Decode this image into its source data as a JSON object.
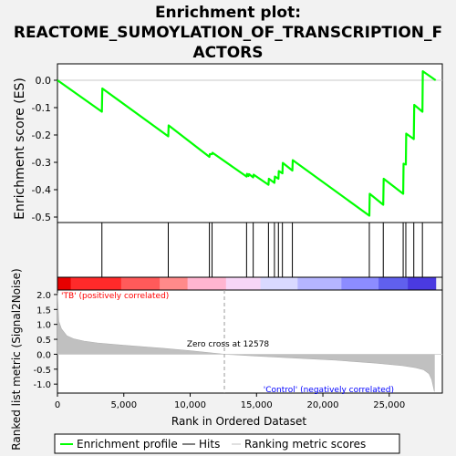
{
  "chart_data": {
    "type": "line",
    "title_lines": [
      "Enrichment plot:",
      "REACTOME_SUMOYLATION_OF_TRANSCRIPTION_F",
      "ACTORS"
    ],
    "xlabel": "Rank in Ordered Dataset",
    "ylabel_top": "Enrichment score (ES)",
    "ylabel_bottom": "Ranked list metric (Signal2Noise)",
    "xlim": [
      0,
      29000
    ],
    "es_ylim": [
      -0.52,
      0.06
    ],
    "metric_ylim": [
      -1.3,
      2.15
    ],
    "x_ticks": [
      0,
      5000,
      10000,
      15000,
      20000,
      25000
    ],
    "x_tick_labels": [
      "0",
      "5,000",
      "10,000",
      "15,000",
      "20,000",
      "25,000"
    ],
    "es_ticks": [
      0.0,
      -0.1,
      -0.2,
      -0.3,
      -0.4,
      -0.5
    ],
    "es_tick_labels": [
      "0.0",
      "-0.1",
      "-0.2",
      "-0.3",
      "-0.4",
      "-0.5"
    ],
    "metric_ticks": [
      2.0,
      1.5,
      1.0,
      0.5,
      0.0,
      -0.5,
      -1.0
    ],
    "metric_tick_labels": [
      "2.0",
      "1.5",
      "1.0",
      "0.5",
      "0.0",
      "-0.5",
      "-1.0"
    ],
    "series": [
      {
        "name": "Enrichment profile",
        "color": "#00ff00",
        "x": [
          0,
          3350,
          3380,
          8350,
          8380,
          11450,
          11480,
          11650,
          11680,
          14250,
          14280,
          14400,
          14430,
          14750,
          14780,
          15900,
          15930,
          16350,
          16380,
          16650,
          16680,
          16950,
          16980,
          17700,
          17730,
          23500,
          23530,
          24550,
          24580,
          26050,
          26080,
          26250,
          26280,
          26850,
          26880,
          27500,
          27530,
          28500
        ],
        "y": [
          0.0,
          -0.115,
          -0.03,
          -0.205,
          -0.165,
          -0.28,
          -0.27,
          -0.27,
          -0.265,
          -0.352,
          -0.342,
          -0.35,
          -0.343,
          -0.355,
          -0.345,
          -0.382,
          -0.36,
          -0.375,
          -0.352,
          -0.36,
          -0.332,
          -0.34,
          -0.302,
          -0.33,
          -0.292,
          -0.495,
          -0.415,
          -0.455,
          -0.36,
          -0.415,
          -0.305,
          -0.308,
          -0.195,
          -0.215,
          -0.09,
          -0.115,
          0.033,
          0.0
        ]
      },
      {
        "name": "Hits",
        "color": "#000000",
        "x": [
          3350,
          8350,
          11450,
          11650,
          14250,
          14750,
          15900,
          16350,
          16650,
          16950,
          17700,
          23500,
          24550,
          26050,
          26250,
          26850,
          27500
        ]
      },
      {
        "name": "Ranking metric scores",
        "color": "#c0c0c0",
        "x": [
          0,
          100,
          300,
          700,
          1200,
          2000,
          3000,
          5000,
          8000,
          10000,
          12578,
          15000,
          18000,
          21000,
          24000,
          26000,
          27000,
          27600,
          28000,
          28200,
          28400
        ],
        "y": [
          2.05,
          1.1,
          0.85,
          0.62,
          0.52,
          0.44,
          0.38,
          0.3,
          0.2,
          0.12,
          0.0,
          -0.06,
          -0.13,
          -0.2,
          -0.3,
          -0.38,
          -0.45,
          -0.52,
          -0.65,
          -0.85,
          -1.25
        ]
      }
    ],
    "zero_cross_label": "Zero cross at 12578",
    "zero_cross_x": 12578,
    "pos_label": "'TB' (positively correlated)",
    "neg_label": "'Control' (negatively correlated)",
    "legend_position": "bottom",
    "legend": [
      "Enrichment profile",
      "Hits",
      "Ranking metric scores"
    ],
    "colors": {
      "profile": "#00ff00",
      "hits": "#000000",
      "metric_fill": "#c0c0c0",
      "pos_label": "#ff0000",
      "neg_label": "#0000ff"
    },
    "heat_colors": [
      "#e60000",
      "#ff2a2a",
      "#ff5a5a",
      "#ff8a8a",
      "#ffb5d0",
      "#f7d6f7",
      "#d9d9ff",
      "#b5b5ff",
      "#8c8cff",
      "#6060ee",
      "#4a3ae0",
      "#2a12c8"
    ],
    "heat_breaks": [
      0,
      1000,
      4800,
      7700,
      9800,
      12700,
      15300,
      18100,
      21400,
      24200,
      26400,
      28500
    ]
  }
}
